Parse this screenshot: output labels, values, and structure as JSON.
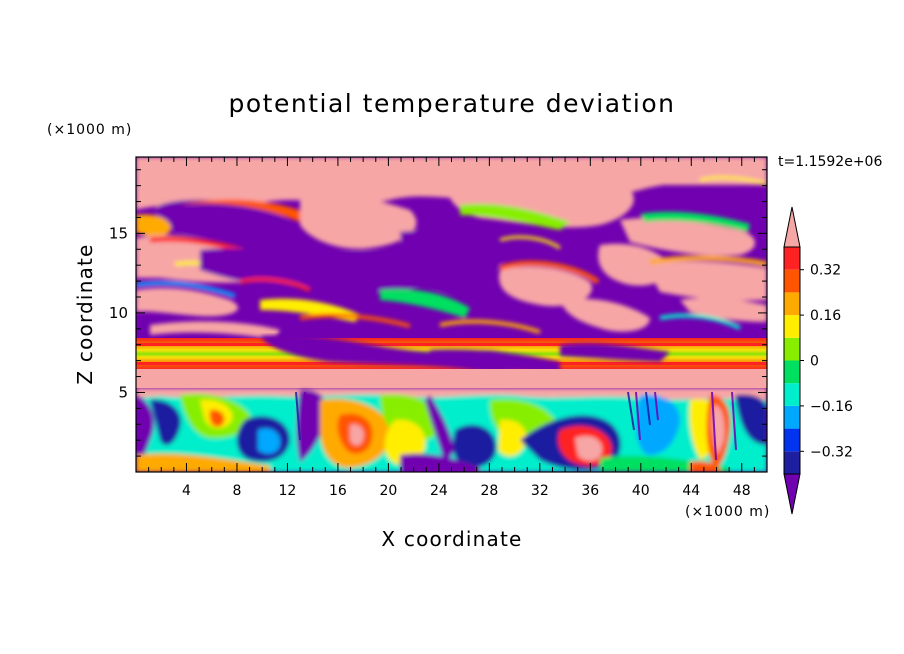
{
  "chart_data": {
    "type": "heatmap",
    "title": "potential temperature deviation",
    "xlabel": "X coordinate",
    "ylabel": "Z coordinate",
    "x_units": "(×1000 m)",
    "y_units": "(×1000 m)",
    "time_label": "t=1.1592e+06",
    "xlim": [
      0,
      50
    ],
    "ylim": [
      0,
      19.8
    ],
    "x_ticks": [
      4,
      8,
      12,
      16,
      20,
      24,
      28,
      32,
      36,
      40,
      44,
      48
    ],
    "y_ticks": [
      5,
      10,
      15
    ],
    "colorbar": {
      "levels": [
        -0.4,
        -0.32,
        -0.24,
        -0.16,
        -0.08,
        0,
        0.08,
        0.16,
        0.24,
        0.32,
        0.4
      ],
      "tick_labels": [
        {
          "value": 0.32,
          "label": "0.32"
        },
        {
          "value": 0.16,
          "label": "0.16"
        },
        {
          "value": 0,
          "label": "0"
        },
        {
          "value": -0.16,
          "label": "−0.16"
        },
        {
          "value": -0.32,
          "label": "−0.32"
        }
      ],
      "colors": [
        "#7000b0",
        "#1e1ea0",
        "#0033ee",
        "#00a8ff",
        "#00eecc",
        "#00e060",
        "#88ee00",
        "#ffee00",
        "#ffaa00",
        "#ff5500",
        "#ff2222",
        "#f7a6a6"
      ],
      "extend": "both"
    },
    "layers": [
      {
        "z_range": [
          15,
          19.8
        ],
        "pattern": "large pink and purple blobs (+0.4 / -0.4)"
      },
      {
        "z_range": [
          8.2,
          15
        ],
        "pattern": "mixed filaments, mostly purple with pink cells"
      },
      {
        "z_range": [
          6.2,
          8.2
        ],
        "pattern": "horizontal band near 0 to +0.3 (red/yellow/green stripes)"
      },
      {
        "z_range": [
          5.2,
          6.2
        ],
        "pattern": "pink layer (+0.4)"
      },
      {
        "z_range": [
          0,
          5.2
        ],
        "pattern": "turbulent boundary layer, -0.4 to +0.4"
      }
    ]
  }
}
